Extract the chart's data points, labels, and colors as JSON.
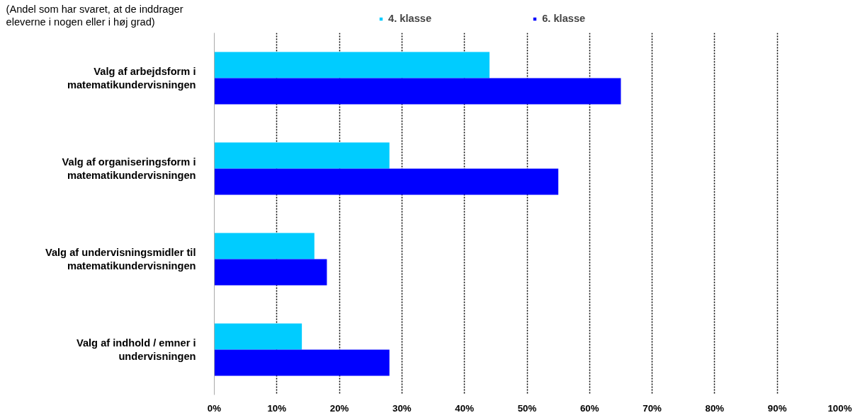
{
  "chart_data": {
    "type": "bar",
    "orientation": "horizontal",
    "annotations": [
      "(Andel som har svaret, at de inddrager eleverne i nogen eller i høj grad)"
    ],
    "categories": [
      "Valg af arbejdsform i matematikundervisningen",
      "Valg af organiseringsform i matematikundervisningen",
      "Valg af undervisningsmidler til matematikundervisningen",
      "Valg af indhold / emner i undervisningen"
    ],
    "series": [
      {
        "name": "4. klasse",
        "color": "#00ccff",
        "values": [
          44,
          28,
          16,
          14
        ]
      },
      {
        "name": "6. klasse",
        "color": "#0000ff",
        "values": [
          65,
          55,
          18,
          28
        ]
      }
    ],
    "xlim": [
      0,
      100
    ],
    "xticks": [
      {
        "value": 0,
        "label": "0%"
      },
      {
        "value": 10,
        "label": "10%"
      },
      {
        "value": 20,
        "label": "20%"
      },
      {
        "value": 30,
        "label": "30%"
      },
      {
        "value": 40,
        "label": "40%"
      },
      {
        "value": 50,
        "label": "50%"
      },
      {
        "value": 60,
        "label": "60%"
      },
      {
        "value": 70,
        "label": "70%"
      },
      {
        "value": 80,
        "label": "80%"
      },
      {
        "value": 90,
        "label": "90%"
      },
      {
        "value": 100,
        "label": "100%"
      }
    ],
    "grid": "x",
    "legend": "top"
  }
}
